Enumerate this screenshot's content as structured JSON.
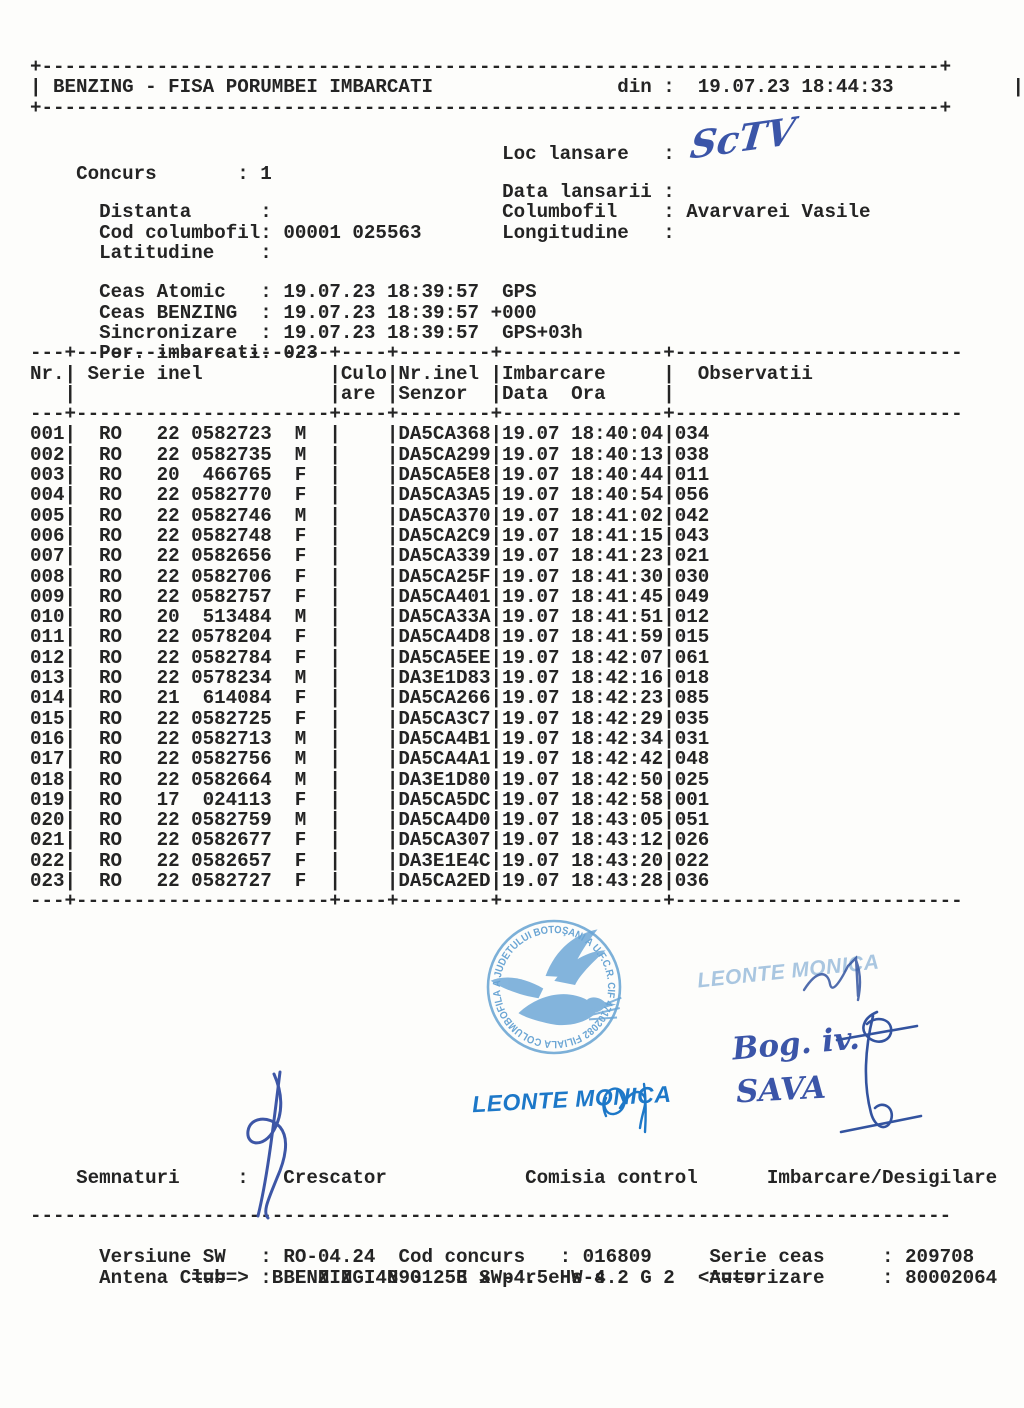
{
  "document": {
    "title": "BENZING - FISA PORUMBEI IMBARCATI",
    "din_label": "din :",
    "din_value": "19.07.23 18:44:33"
  },
  "info": {
    "concurs": {
      "label": "Concurs",
      "value": "1"
    },
    "loc_lansare": {
      "label": "Loc lansare",
      "value": ""
    },
    "distanta": {
      "label": "Distanta",
      "value": ""
    },
    "data_lansarii": {
      "label": "Data lansarii",
      "value": ""
    },
    "cod_columbofil": {
      "label": "Cod columbofil",
      "value": "00001 025563"
    },
    "columbofil": {
      "label": "Columbofil",
      "value": "Avarvarei Vasile"
    },
    "latitudine": {
      "label": "Latitudine",
      "value": ""
    },
    "longitudine": {
      "label": "Longitudine",
      "value": ""
    }
  },
  "clocks": {
    "ceas_atomic": {
      "label": "Ceas Atomic",
      "time": "19.07.23 18:39:57",
      "mode": "GPS"
    },
    "ceas_benzing": {
      "label": "Ceas BENZING",
      "time": "19.07.23 18:39:57",
      "mode": "+000"
    },
    "sincronizare": {
      "label": "Sincronizare",
      "time": "19.07.23 18:39:57",
      "mode": "GPS+03h"
    },
    "por_imbarcati": {
      "label": "Por. imbarcati",
      "value": "023"
    }
  },
  "table": {
    "headers": {
      "nr": "Nr.",
      "serie": "Serie inel",
      "culo_1": "Culo",
      "culo_2": "are",
      "senzor_1": "Nr.inel",
      "senzor_2": "Senzor",
      "imbarcare_1": "Imbarcare",
      "imbarcare_2": "Data  Ora",
      "observatii": "Observatii"
    },
    "rows": [
      {
        "nr": "001",
        "country": "RO",
        "year": "22",
        "ring": "0582723",
        "sex": "M",
        "culoare": "",
        "senzor": "DA5CA368",
        "data": "19.07",
        "ora": "18:40:04",
        "obs": "034"
      },
      {
        "nr": "002",
        "country": "RO",
        "year": "22",
        "ring": "0582735",
        "sex": "M",
        "culoare": "",
        "senzor": "DA5CA299",
        "data": "19.07",
        "ora": "18:40:13",
        "obs": "038"
      },
      {
        "nr": "003",
        "country": "RO",
        "year": "20",
        "ring": "466765",
        "sex": "F",
        "culoare": "",
        "senzor": "DA5CA5E8",
        "data": "19.07",
        "ora": "18:40:44",
        "obs": "011"
      },
      {
        "nr": "004",
        "country": "RO",
        "year": "22",
        "ring": "0582770",
        "sex": "F",
        "culoare": "",
        "senzor": "DA5CA3A5",
        "data": "19.07",
        "ora": "18:40:54",
        "obs": "056"
      },
      {
        "nr": "005",
        "country": "RO",
        "year": "22",
        "ring": "0582746",
        "sex": "M",
        "culoare": "",
        "senzor": "DA5CA370",
        "data": "19.07",
        "ora": "18:41:02",
        "obs": "042"
      },
      {
        "nr": "006",
        "country": "RO",
        "year": "22",
        "ring": "0582748",
        "sex": "F",
        "culoare": "",
        "senzor": "DA5CA2C9",
        "data": "19.07",
        "ora": "18:41:15",
        "obs": "043"
      },
      {
        "nr": "007",
        "country": "RO",
        "year": "22",
        "ring": "0582656",
        "sex": "F",
        "culoare": "",
        "senzor": "DA5CA339",
        "data": "19.07",
        "ora": "18:41:23",
        "obs": "021"
      },
      {
        "nr": "008",
        "country": "RO",
        "year": "22",
        "ring": "0582706",
        "sex": "F",
        "culoare": "",
        "senzor": "DA5CA25F",
        "data": "19.07",
        "ora": "18:41:30",
        "obs": "030"
      },
      {
        "nr": "009",
        "country": "RO",
        "year": "22",
        "ring": "0582757",
        "sex": "F",
        "culoare": "",
        "senzor": "DA5CA401",
        "data": "19.07",
        "ora": "18:41:45",
        "obs": "049"
      },
      {
        "nr": "010",
        "country": "RO",
        "year": "20",
        "ring": "513484",
        "sex": "M",
        "culoare": "",
        "senzor": "DA5CA33A",
        "data": "19.07",
        "ora": "18:41:51",
        "obs": "012"
      },
      {
        "nr": "011",
        "country": "RO",
        "year": "22",
        "ring": "0578204",
        "sex": "F",
        "culoare": "",
        "senzor": "DA5CA4D8",
        "data": "19.07",
        "ora": "18:41:59",
        "obs": "015"
      },
      {
        "nr": "012",
        "country": "RO",
        "year": "22",
        "ring": "0582784",
        "sex": "F",
        "culoare": "",
        "senzor": "DA5CA5EE",
        "data": "19.07",
        "ora": "18:42:07",
        "obs": "061"
      },
      {
        "nr": "013",
        "country": "RO",
        "year": "22",
        "ring": "0578234",
        "sex": "M",
        "culoare": "",
        "senzor": "DA3E1D83",
        "data": "19.07",
        "ora": "18:42:16",
        "obs": "018"
      },
      {
        "nr": "014",
        "country": "RO",
        "year": "21",
        "ring": "614084",
        "sex": "F",
        "culoare": "",
        "senzor": "DA5CA266",
        "data": "19.07",
        "ora": "18:42:23",
        "obs": "085"
      },
      {
        "nr": "015",
        "country": "RO",
        "year": "22",
        "ring": "0582725",
        "sex": "F",
        "culoare": "",
        "senzor": "DA5CA3C7",
        "data": "19.07",
        "ora": "18:42:29",
        "obs": "035"
      },
      {
        "nr": "016",
        "country": "RO",
        "year": "22",
        "ring": "0582713",
        "sex": "M",
        "culoare": "",
        "senzor": "DA5CA4B1",
        "data": "19.07",
        "ora": "18:42:34",
        "obs": "031"
      },
      {
        "nr": "017",
        "country": "RO",
        "year": "22",
        "ring": "0582756",
        "sex": "M",
        "culoare": "",
        "senzor": "DA5CA4A1",
        "data": "19.07",
        "ora": "18:42:42",
        "obs": "048"
      },
      {
        "nr": "018",
        "country": "RO",
        "year": "22",
        "ring": "0582664",
        "sex": "M",
        "culoare": "",
        "senzor": "DA3E1D80",
        "data": "19.07",
        "ora": "18:42:50",
        "obs": "025"
      },
      {
        "nr": "019",
        "country": "RO",
        "year": "17",
        "ring": "024113",
        "sex": "F",
        "culoare": "",
        "senzor": "DA5CA5DC",
        "data": "19.07",
        "ora": "18:42:58",
        "obs": "001"
      },
      {
        "nr": "020",
        "country": "RO",
        "year": "22",
        "ring": "0582759",
        "sex": "M",
        "culoare": "",
        "senzor": "DA5CA4D0",
        "data": "19.07",
        "ora": "18:43:05",
        "obs": "051"
      },
      {
        "nr": "021",
        "country": "RO",
        "year": "22",
        "ring": "0582677",
        "sex": "F",
        "culoare": "",
        "senzor": "DA5CA307",
        "data": "19.07",
        "ora": "18:43:12",
        "obs": "026"
      },
      {
        "nr": "022",
        "country": "RO",
        "year": "22",
        "ring": "0582657",
        "sex": "F",
        "culoare": "",
        "senzor": "DA3E1E4C",
        "data": "19.07",
        "ora": "18:43:20",
        "obs": "022"
      },
      {
        "nr": "023",
        "country": "RO",
        "year": "22",
        "ring": "0582727",
        "sex": "F",
        "culoare": "",
        "senzor": "DA5CA2ED",
        "data": "19.07",
        "ora": "18:43:28",
        "obs": "036"
      }
    ]
  },
  "stamp": {
    "ring_text": "A JUDETULUI BOTOŞANI A U.F.C.R.  CIF 47102082  FILIALA COLUMBOFILA "
  },
  "controller": {
    "name": "LEONTE MONICA"
  },
  "handwriting": {
    "loc_lansare": "ScTV",
    "note_line1": "Bog. iv.",
    "note_line2": "SAVA"
  },
  "signatures_row": {
    "label": "Semnaturi",
    "crescator": "Crescator",
    "comisia": "Comisia control",
    "imbarcare": "Imbarcare/Desigilare"
  },
  "footer": {
    "versiune_sw": {
      "label": "Versiune SW",
      "value": "RO-04.24"
    },
    "cod_concurs": {
      "label": "Cod concurs",
      "value": "016809"
    },
    "serie_ceas": {
      "label": "Serie ceas",
      "value": "209708"
    },
    "antena_club": {
      "label": "Antena Club",
      "value": "BENZING 48901253 SW-4.5 HW-4.2"
    },
    "autorizare": {
      "label": "Autorizare",
      "value": "80002064"
    },
    "brand_line": "====>  B E N Z I N G   E x p r e s s   G 2  <===="
  },
  "colors": {
    "ink": "#242424",
    "pen_blue": "#3b55a8",
    "stamp_blue": "#1d78c8",
    "stamp_blue_faded": "#a9c6e0",
    "club_stamp_blue": "#5b9cd0"
  }
}
